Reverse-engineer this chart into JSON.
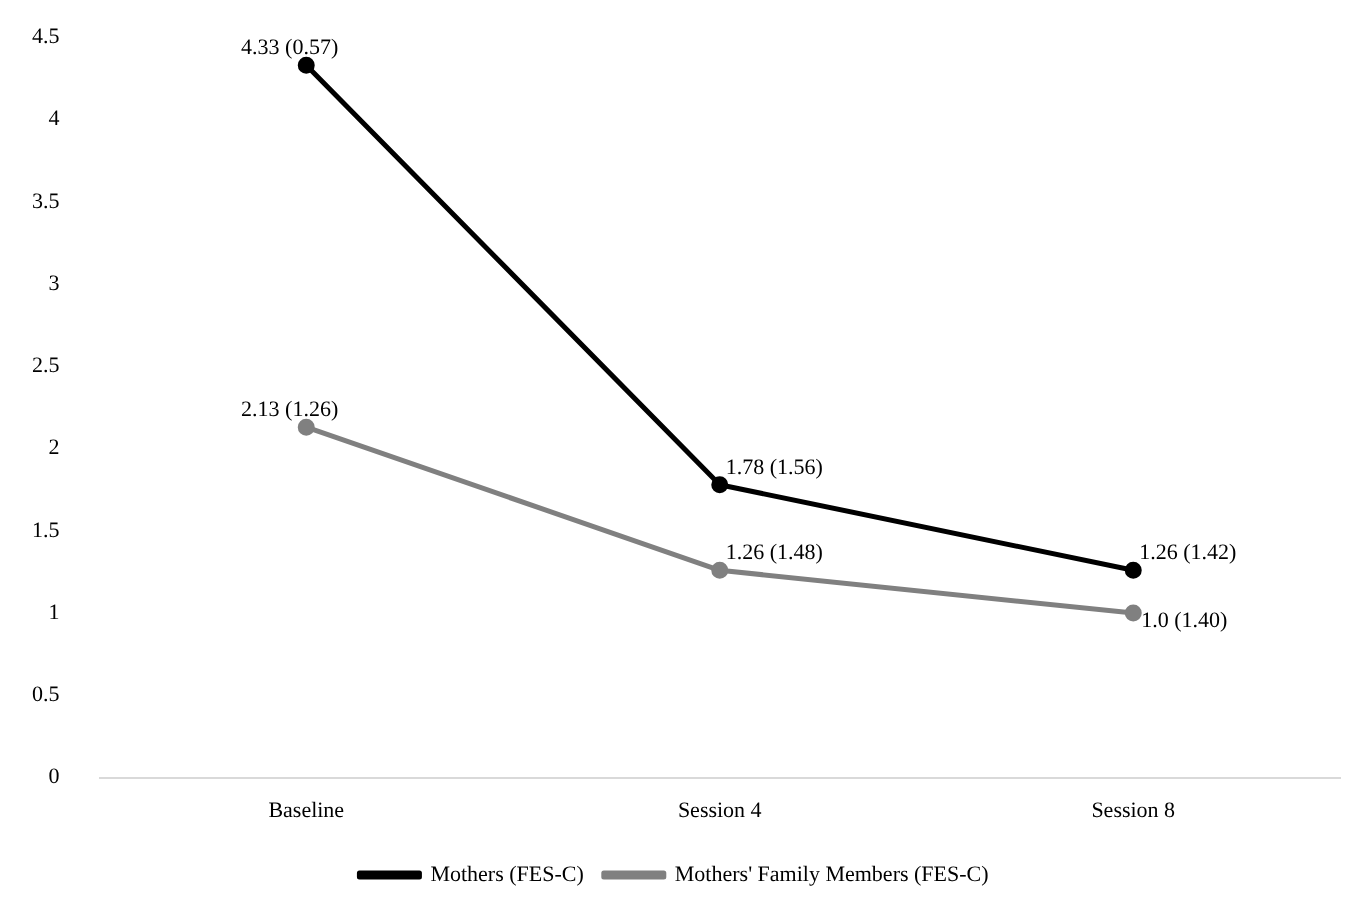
{
  "chart_data": {
    "type": "line",
    "categories": [
      "Baseline",
      "Session 4",
      "Session 8"
    ],
    "series": [
      {
        "name": "Mothers (FES-C)",
        "color": "#000000",
        "values": [
          4.33,
          1.78,
          1.26
        ],
        "value_labels": [
          "4.33 (0.57)",
          "1.78 (1.56)",
          "1.26 (1.42)"
        ]
      },
      {
        "name": "Mothers' Family Members (FES-C)",
        "color": "#808080",
        "values": [
          2.13,
          1.26,
          1.0
        ],
        "value_labels": [
          "2.13 (1.26)",
          "1.26 (1.48)",
          "1.0 (1.40)"
        ]
      }
    ],
    "ylim": [
      0,
      4.5
    ],
    "yticks": [
      0,
      0.5,
      1,
      1.5,
      2,
      2.5,
      3,
      3.5,
      4,
      4.5
    ],
    "grid": false,
    "legend": "bottom",
    "marker": "circle",
    "line_style": "solid"
  }
}
